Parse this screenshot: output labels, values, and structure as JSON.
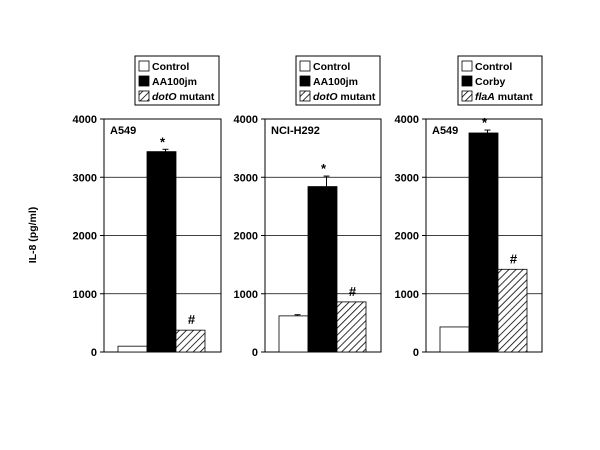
{
  "figure": {
    "ylabel": "IL-8 (pg/ml)"
  },
  "colors": {
    "control": "#ffffff",
    "wildtype": "#000000",
    "mutant": "hatched",
    "axis": "#000000"
  },
  "chart_data": [
    {
      "type": "bar",
      "title": "A549",
      "ylabel": "IL-8 (pg/ml)",
      "ylim": [
        0,
        4000
      ],
      "yticks": [
        "0",
        "1000",
        "2000",
        "3000",
        "4000"
      ],
      "grid": true,
      "legend": [
        {
          "prefix": "",
          "italic": "",
          "suffix": "Control",
          "style": "white"
        },
        {
          "prefix": "",
          "italic": "",
          "suffix": "AA100jm",
          "style": "black"
        },
        {
          "prefix": "",
          "italic": "dotO",
          "suffix": " mutant",
          "style": "hatched"
        }
      ],
      "series": [
        {
          "name": "Control",
          "values": [
            100
          ],
          "style": "white",
          "error": 0,
          "mark": ""
        },
        {
          "name": "AA100jm",
          "values": [
            3440
          ],
          "style": "black",
          "error": 40,
          "mark": "*"
        },
        {
          "name": "dotO mutant",
          "values": [
            375
          ],
          "style": "hatched",
          "error": 0,
          "mark": "#"
        }
      ]
    },
    {
      "type": "bar",
      "title": "NCI-H292",
      "ylabel": "",
      "ylim": [
        0,
        4000
      ],
      "yticks": [
        "0",
        "1000",
        "2000",
        "3000",
        "4000"
      ],
      "grid": true,
      "legend": [
        {
          "prefix": "",
          "italic": "",
          "suffix": "Control",
          "style": "white"
        },
        {
          "prefix": "",
          "italic": "",
          "suffix": "AA100jm",
          "style": "black"
        },
        {
          "prefix": "",
          "italic": "dotO",
          "suffix": " mutant",
          "style": "hatched"
        }
      ],
      "series": [
        {
          "name": "Control",
          "values": [
            620
          ],
          "style": "white",
          "error": 20,
          "mark": ""
        },
        {
          "name": "AA100jm",
          "values": [
            2840
          ],
          "style": "black",
          "error": 180,
          "mark": "*"
        },
        {
          "name": "dotO mutant",
          "values": [
            860
          ],
          "style": "hatched",
          "error": 0,
          "mark": "#"
        }
      ]
    },
    {
      "type": "bar",
      "title": "A549",
      "ylabel": "",
      "ylim": [
        0,
        4000
      ],
      "yticks": [
        "0",
        "1000",
        "2000",
        "3000",
        "4000"
      ],
      "grid": true,
      "legend": [
        {
          "prefix": "",
          "italic": "",
          "suffix": "Control",
          "style": "white"
        },
        {
          "prefix": "",
          "italic": "",
          "suffix": "Corby",
          "style": "black"
        },
        {
          "prefix": "",
          "italic": "flaA",
          "suffix": " mutant",
          "style": "hatched"
        }
      ],
      "series": [
        {
          "name": "Control",
          "values": [
            430
          ],
          "style": "white",
          "error": 0,
          "mark": ""
        },
        {
          "name": "Corby",
          "values": [
            3760
          ],
          "style": "black",
          "error": 50,
          "mark": "*"
        },
        {
          "name": "flaA mutant",
          "values": [
            1420
          ],
          "style": "hatched",
          "error": 0,
          "mark": "#"
        }
      ]
    }
  ]
}
